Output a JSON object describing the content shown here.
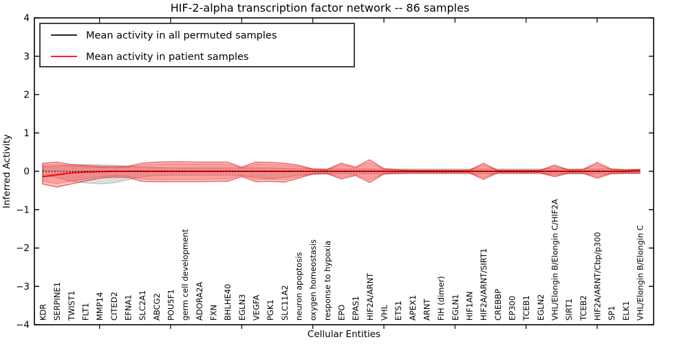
{
  "title": "HIF-2-alpha transcription factor network -- 86 samples",
  "axes": {
    "xlabel": "Cellular Entities",
    "ylabel": "Inferred Activity",
    "ytick_labels": [
      "4",
      "3",
      "2",
      "1",
      "0",
      "−1",
      "−2",
      "−3",
      "−4"
    ],
    "ytick_values": [
      4,
      3,
      2,
      1,
      0,
      -1,
      -2,
      -3,
      -4
    ]
  },
  "legend": {
    "entries": [
      {
        "label": "Mean activity in all permuted samples",
        "color": "#000000",
        "style": "solid"
      },
      {
        "label": "Mean activity in patient samples",
        "color": "#ff0000",
        "style": "solid"
      }
    ]
  },
  "colors": {
    "patient": "#ff0000",
    "permuted": "#000000",
    "patient_band": "#ff0000",
    "permuted_band": "#8c8c8c",
    "frame": "#000000",
    "background": "#ffffff"
  },
  "chart_data": {
    "type": "line",
    "title": "HIF-2-alpha transcription factor network -- 86 samples",
    "xlabel": "Cellular Entities",
    "ylabel": "Inferred Activity",
    "ylim": [
      -4,
      4
    ],
    "grid": false,
    "legend_position": "upper left",
    "categories": [
      "KDR",
      "SERPINE1",
      "TWIST1",
      "FLT1",
      "MMP14",
      "CITED2",
      "EFNA1",
      "SLC2A1",
      "ABCG2",
      "POU5F1",
      "germ cell development",
      "ADORA2A",
      "FXN",
      "BHLHE40",
      "EGLN3",
      "VEGFA",
      "PGK1",
      "SLC11A2",
      "neuron apoptosis",
      "oxygen homeostasis",
      "response to hypoxia",
      "EPO",
      "EPAS1",
      "HIF2A/ARNT",
      "VHL",
      "ETS1",
      "APEX1",
      "ARNT",
      "FIH (dimer)",
      "EGLN1",
      "HIF1AN",
      "HIF2A/ARNT/SIRT1",
      "CREBBP",
      "EP300",
      "TCEB1",
      "EGLN2",
      "VHL/Elongin B/Elongin C/HIF2A",
      "SIRT1",
      "TCEB2",
      "HIF2A/ARNT/Cbp/p300",
      "SP1",
      "ELK1",
      "VHL/Elongin B/Elongin C"
    ],
    "series": [
      {
        "name": "Mean activity in all permuted samples",
        "color": "#000000",
        "style": "dotted",
        "values": [
          0,
          0,
          0,
          0,
          0,
          0,
          0,
          0,
          0,
          0,
          0,
          0,
          0,
          0,
          0,
          0,
          0,
          0,
          0,
          0,
          0,
          0,
          0,
          0,
          0,
          0,
          0,
          0,
          0,
          0,
          0,
          0,
          0,
          0,
          0,
          0,
          0,
          0,
          0,
          0,
          0,
          0,
          0
        ]
      },
      {
        "name": "Mean activity in patient samples",
        "color": "#ff0000",
        "style": "solid",
        "values": [
          -0.14,
          -0.09,
          -0.04,
          -0.02,
          -0.01,
          0,
          0,
          0,
          0,
          0,
          0,
          0,
          0,
          0,
          0,
          0,
          0,
          0,
          0,
          0,
          0,
          0,
          0,
          0,
          0,
          0,
          0,
          0,
          0,
          0,
          0,
          0,
          0,
          0,
          0,
          0,
          0,
          0,
          0,
          0,
          0,
          0,
          0.02
        ]
      }
    ],
    "bands": [
      {
        "name": "permuted samples range",
        "color": "#8c8c8c",
        "upper": [
          0.12,
          0.14,
          0.17,
          0.18,
          0.17,
          0.16,
          0.14,
          0.11,
          0.1,
          0.09,
          0.09,
          0.09,
          0.09,
          0.09,
          0.09,
          0.09,
          0.09,
          0.08,
          0.07,
          0.07,
          0.06,
          0.06,
          0.06,
          0.06,
          0.06,
          0.06,
          0.06,
          0.06,
          0.06,
          0.06,
          0.06,
          0.06,
          0.06,
          0.06,
          0.06,
          0.06,
          0.06,
          0.06,
          0.06,
          0.06,
          0.06,
          0.05,
          0.05
        ],
        "lower": [
          -0.12,
          -0.16,
          -0.26,
          -0.3,
          -0.33,
          -0.3,
          -0.22,
          -0.14,
          -0.11,
          -0.1,
          -0.1,
          -0.1,
          -0.1,
          -0.1,
          -0.11,
          -0.16,
          -0.19,
          -0.16,
          -0.1,
          -0.08,
          -0.07,
          -0.07,
          -0.07,
          -0.07,
          -0.07,
          -0.07,
          -0.07,
          -0.07,
          -0.07,
          -0.07,
          -0.07,
          -0.07,
          -0.07,
          -0.07,
          -0.07,
          -0.07,
          -0.07,
          -0.07,
          -0.07,
          -0.07,
          -0.07,
          -0.06,
          -0.06
        ]
      },
      {
        "name": "patient samples range",
        "color": "#ff0000",
        "upper": [
          0.21,
          0.24,
          0.18,
          0.15,
          0.13,
          0.12,
          0.13,
          0.21,
          0.24,
          0.25,
          0.25,
          0.24,
          0.24,
          0.24,
          0.11,
          0.24,
          0.23,
          0.21,
          0.16,
          0.06,
          0.05,
          0.21,
          0.11,
          0.3,
          0.07,
          0.04,
          0.03,
          0.03,
          0.03,
          0.03,
          0.03,
          0.21,
          0.03,
          0.03,
          0.03,
          0.03,
          0.16,
          0.04,
          0.05,
          0.23,
          0.06,
          0.04,
          0.05
        ],
        "lower": [
          -0.33,
          -0.41,
          -0.33,
          -0.25,
          -0.18,
          -0.15,
          -0.16,
          -0.26,
          -0.27,
          -0.27,
          -0.27,
          -0.27,
          -0.26,
          -0.26,
          -0.14,
          -0.27,
          -0.26,
          -0.28,
          -0.18,
          -0.07,
          -0.06,
          -0.2,
          -0.11,
          -0.29,
          -0.07,
          -0.05,
          -0.04,
          -0.04,
          -0.04,
          -0.04,
          -0.04,
          -0.21,
          -0.04,
          -0.04,
          -0.04,
          -0.04,
          -0.14,
          -0.05,
          -0.05,
          -0.18,
          -0.06,
          -0.05,
          -0.05
        ]
      }
    ]
  }
}
